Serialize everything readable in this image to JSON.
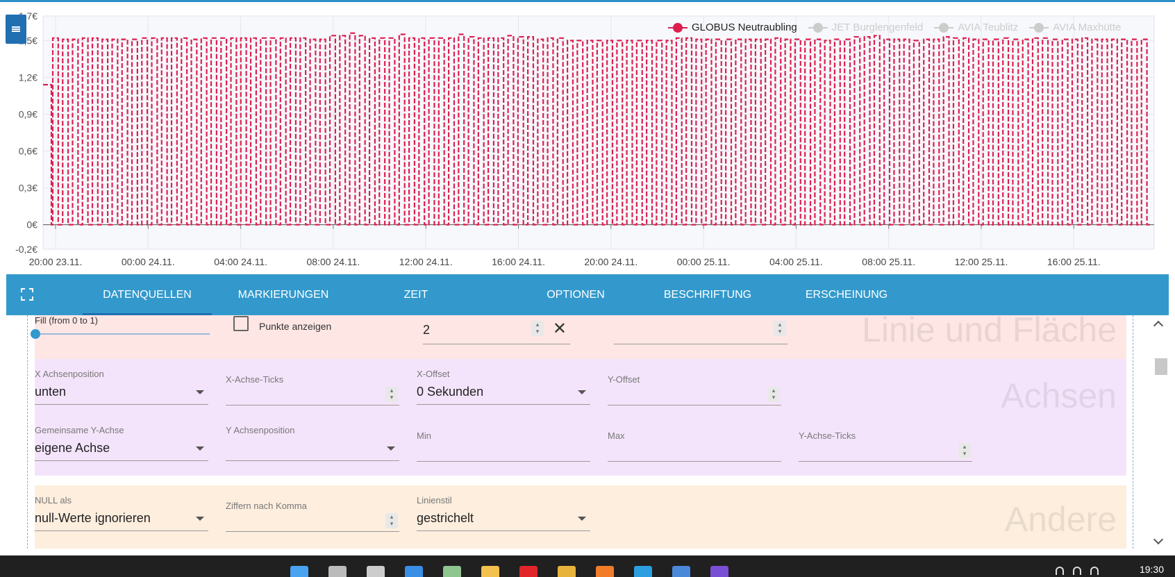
{
  "chart_data": {
    "type": "line",
    "x_ticks": [
      "20:00 23.11.",
      "00:00 24.11.",
      "04:00 24.11.",
      "08:00 24.11.",
      "12:00 24.11.",
      "16:00 24.11.",
      "20:00 24.11.",
      "00:00 25.11.",
      "04:00 25.11.",
      "08:00 25.11.",
      "12:00 25.11.",
      "16:00 25.11."
    ],
    "y_ticks": [
      "-0,2€",
      "0€",
      "0,3€",
      "0,6€",
      "0,9€",
      "1,2€",
      "1,5€",
      "1,7€"
    ],
    "ylim": [
      -0.2,
      1.7
    ],
    "y_unit": "€",
    "grid": true,
    "legend_position": "top-right",
    "series": [
      {
        "name": "GLOBUS Neutraubling",
        "color": "#dc1f4f",
        "active": true,
        "line_style": "dashed",
        "pulse_levels": [
          1.14,
          1.52,
          1.51,
          1.51,
          1.52,
          1.52,
          1.51,
          1.51,
          1.51,
          1.51,
          1.52,
          1.52,
          1.52,
          1.52,
          1.52,
          1.51,
          1.52,
          1.52,
          1.52,
          1.52,
          1.52,
          1.52,
          1.52,
          1.52,
          1.52,
          1.52,
          1.52,
          1.51,
          1.51,
          1.54,
          1.54,
          1.56,
          1.54,
          1.52,
          1.52,
          1.52,
          1.55,
          1.52,
          1.52,
          1.52,
          1.52,
          1.52,
          1.55,
          1.53,
          1.52,
          1.52,
          1.52,
          1.54,
          1.53,
          1.53,
          1.51,
          1.52,
          1.52,
          1.5,
          1.5,
          1.5,
          1.5,
          1.5,
          1.5,
          1.5,
          1.5,
          1.5,
          1.5,
          1.5,
          1.52,
          1.52,
          1.51,
          1.51,
          1.51,
          1.51,
          1.51,
          1.51,
          1.51,
          1.51,
          1.52,
          1.51,
          1.51,
          1.51,
          1.51,
          1.5,
          1.51,
          1.51,
          1.53,
          1.53,
          1.54,
          1.51,
          1.51,
          1.51,
          1.5,
          1.51,
          1.51,
          1.53,
          1.52,
          1.52,
          1.51,
          1.51,
          1.51,
          1.52,
          1.51,
          1.51,
          1.52,
          1.52,
          1.51,
          1.51,
          1.51,
          1.52,
          1.51,
          1.51,
          1.51,
          1.51,
          1.51,
          1.51
        ]
      },
      {
        "name": "JET Burglengenfeld",
        "color": "#cccccc",
        "active": false
      },
      {
        "name": "AVIA Teublitz",
        "color": "#cccccc",
        "active": false
      },
      {
        "name": "AVIA Maxhütte",
        "color": "#cccccc",
        "active": false
      }
    ]
  },
  "tabs": [
    {
      "label": "DATENQUELLEN",
      "active": true
    },
    {
      "label": "MARKIERUNGEN"
    },
    {
      "label": "ZEIT"
    },
    {
      "label": "OPTIONEN"
    },
    {
      "label": "BESCHRIFTUNG"
    },
    {
      "label": "ERSCHEINUNG"
    }
  ],
  "sections": {
    "linie": {
      "title": "Linie und Fläche",
      "fill_label": "Fill (from 0 to 1)",
      "fill_value": 0,
      "points_label": "Punkte anzeigen",
      "points_checked": false,
      "line_width_value": "2",
      "bg_color": "#fde6e4"
    },
    "achsen": {
      "title": "Achsen",
      "bg_color": "#f4e4fb",
      "x_position_label": "X Achsenposition",
      "x_position_value": "unten",
      "x_ticks_label": "X-Achse-Ticks",
      "x_offset_label": "X-Offset",
      "x_offset_value": "0 Sekunden",
      "y_offset_label": "Y-Offset",
      "shared_y_label": "Gemeinsame Y-Achse",
      "shared_y_value": "eigene Achse",
      "y_position_label": "Y Achsenposition",
      "min_label": "Min",
      "max_label": "Max",
      "y_ticks_label": "Y-Achse-Ticks"
    },
    "andere": {
      "title": "Andere",
      "bg_color": "#fdeede",
      "null_label": "NULL als",
      "null_value": "null-Werte ignorieren",
      "digits_label": "Ziffern nach Komma",
      "linestyle_label": "Linienstil",
      "linestyle_value": "gestrichelt"
    }
  },
  "taskbar": {
    "clock": "19:30",
    "icons": [
      "windows-start-icon",
      "search-icon",
      "task-view-icon",
      "widgets-icon",
      "notepad-icon",
      "file-explorer-icon",
      "opera-icon",
      "chrome-icon",
      "firefox-icon",
      "edge-icon",
      "mail-icon",
      "app-icon"
    ]
  }
}
